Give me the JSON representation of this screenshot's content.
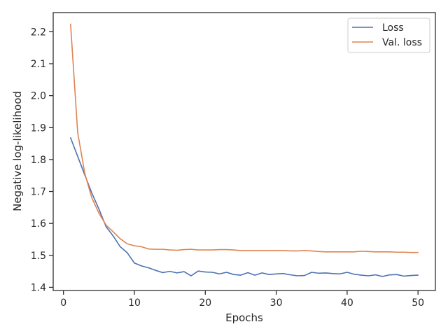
{
  "chart_data": {
    "type": "line",
    "title": "",
    "xlabel": "Epochs",
    "ylabel": "Negative log-likelihood",
    "xlim": [
      -1.45,
      52.45
    ],
    "ylim": [
      1.39,
      2.26
    ],
    "xticks": [
      0,
      10,
      20,
      30,
      40,
      50
    ],
    "yticks": [
      1.4,
      1.5,
      1.6,
      1.7,
      1.8,
      1.9,
      2.0,
      2.1,
      2.2
    ],
    "grid": false,
    "legend_position": "top-right",
    "x": [
      1,
      2,
      3,
      4,
      5,
      6,
      7,
      8,
      9,
      10,
      11,
      12,
      13,
      14,
      15,
      16,
      17,
      18,
      19,
      20,
      21,
      22,
      23,
      24,
      25,
      26,
      27,
      28,
      29,
      30,
      31,
      32,
      33,
      34,
      35,
      36,
      37,
      38,
      39,
      40,
      41,
      42,
      43,
      44,
      45,
      46,
      47,
      48,
      49,
      50
    ],
    "series": [
      {
        "name": "Loss",
        "color": "#4c72b0",
        "values": [
          1.868,
          1.81,
          1.752,
          1.695,
          1.645,
          1.59,
          1.561,
          1.527,
          1.508,
          1.476,
          1.467,
          1.461,
          1.453,
          1.446,
          1.45,
          1.445,
          1.449,
          1.436,
          1.451,
          1.448,
          1.447,
          1.442,
          1.447,
          1.44,
          1.438,
          1.446,
          1.438,
          1.445,
          1.44,
          1.442,
          1.443,
          1.439,
          1.436,
          1.437,
          1.447,
          1.444,
          1.445,
          1.443,
          1.442,
          1.447,
          1.441,
          1.438,
          1.436,
          1.439,
          1.434,
          1.439,
          1.44,
          1.435,
          1.437,
          1.438
        ]
      },
      {
        "name": "Val. loss",
        "color": "#dd8452",
        "values": [
          2.224,
          1.885,
          1.757,
          1.68,
          1.632,
          1.595,
          1.574,
          1.552,
          1.536,
          1.53,
          1.527,
          1.52,
          1.519,
          1.519,
          1.517,
          1.516,
          1.518,
          1.519,
          1.517,
          1.517,
          1.517,
          1.518,
          1.518,
          1.517,
          1.515,
          1.515,
          1.515,
          1.515,
          1.515,
          1.515,
          1.515,
          1.514,
          1.514,
          1.515,
          1.514,
          1.512,
          1.511,
          1.511,
          1.511,
          1.511,
          1.511,
          1.513,
          1.512,
          1.511,
          1.511,
          1.511,
          1.51,
          1.51,
          1.509,
          1.509
        ]
      }
    ]
  }
}
